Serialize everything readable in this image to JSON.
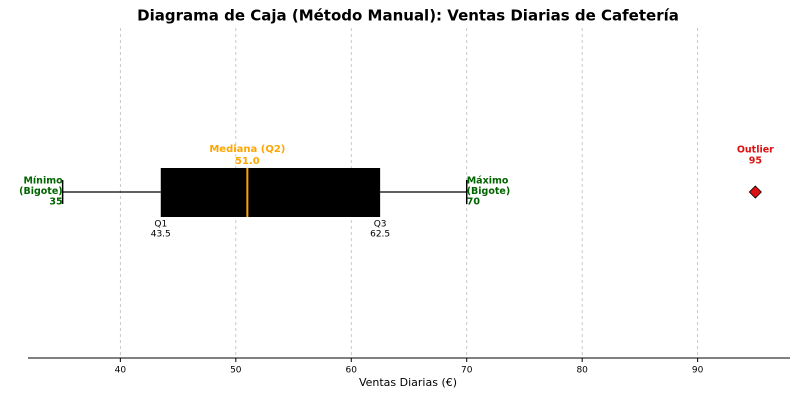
{
  "chart_data": {
    "type": "box",
    "title": "Diagrama de Caja (Método Manual): Ventas Diarias de Cafetería",
    "xlabel": "Ventas Diarias (€)",
    "xlim": [
      32,
      98
    ],
    "xticks": [
      40,
      50,
      60,
      70,
      80,
      90
    ],
    "grid": true,
    "box": {
      "min": 35,
      "q1": 43.5,
      "median": 51,
      "q3": 62.5,
      "max": 70,
      "outliers": [
        95
      ],
      "value_labels": {
        "median": "51.0"
      },
      "color": "#000000",
      "median_color": "#ffa500",
      "outlier_color": "#dd1111"
    },
    "annotations": {
      "min": [
        "Mínimo",
        "(Bigote)"
      ],
      "max": [
        "Máximo",
        "(Bigote)"
      ],
      "median": "Mediana (Q2)",
      "q1": "Q1",
      "q3": "Q3",
      "outlier": "Outlier"
    }
  }
}
